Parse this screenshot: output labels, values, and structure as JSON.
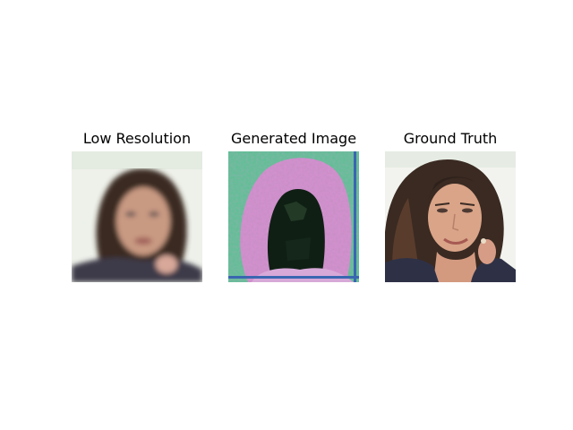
{
  "panels": [
    {
      "title": "Low Resolution"
    },
    {
      "title": "Generated Image"
    },
    {
      "title": "Ground Truth"
    }
  ],
  "colors": {
    "background": "#ffffff",
    "title_text": "#000000",
    "hair_dark": "#3a2a22",
    "skin": "#d9a488",
    "generated_bg": "#5fbf93",
    "generated_magenta": "#c98fc5"
  }
}
